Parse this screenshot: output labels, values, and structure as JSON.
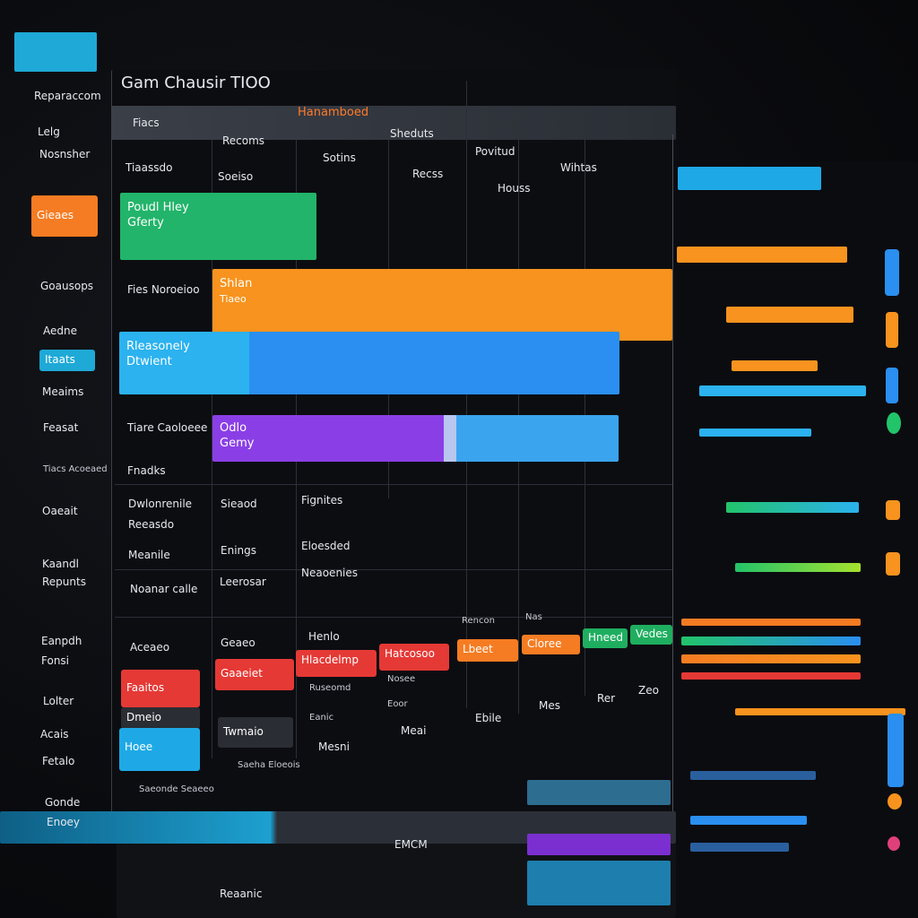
{
  "header": {
    "title": "Gam Chausir TIOO",
    "badge": "Hanamboed"
  },
  "sidebar": {
    "items": [
      "Reparaccom",
      "Lelg",
      "Nosnsher",
      "Gieaes",
      "Goausops",
      "Aedne",
      "Itaats",
      "Meaims",
      "Feasat",
      "Tiacs Acoeaed",
      "Oaeait",
      "Kaandl",
      "Repunts",
      "Eanpdh",
      "Fonsi",
      "Lolter",
      "Acais",
      "Fetalo",
      "Gonde",
      "Enoey"
    ]
  },
  "columns": [
    "Fiacs",
    "Recoms",
    "Sotins",
    "Recss",
    "Houss",
    "Sheduts",
    "Povitud",
    "Wihtas"
  ],
  "tasks": [
    {
      "line1": "Poudl Hley",
      "line2": "Gferty"
    },
    {
      "line1": "Shlan",
      "line2": "Tiaeo"
    },
    {
      "line1": "Rleasonely",
      "line2": "Dtwient"
    },
    {
      "line1": "Odlo",
      "line2": "Gemy"
    }
  ],
  "rows": [
    "Tiaassdo",
    "Soeiso",
    "Fies Noroeioo",
    "Tiare Caoloeee",
    "Fnadks",
    "Dwlonrenile",
    "Reeasdo",
    "Meanile",
    "Sieaod",
    "Enings",
    "Fignites",
    "Eloesded",
    "Neaoenies",
    "Noanar calle",
    "Leerosar",
    "Aceaeo",
    "Geaeo",
    "Henlo",
    "Rencon",
    "Nas",
    "Ruseomd",
    "Eanic",
    "Mesni",
    "Meai",
    "Ebile",
    "Mes",
    "Rer",
    "Zeo",
    "Saeha Eloeois",
    "Saeonde Seaeeo",
    "Nosee",
    "Eoor"
  ],
  "tags": [
    "Faaitos",
    "Dmeio",
    "Hoee",
    "Gaaeiet",
    "Hlacdelmp",
    "Hatcosoo",
    "Lbeet",
    "Cloree",
    "Hneed",
    "Vedes",
    "Twmaio"
  ],
  "footer": {
    "section": "EMCM",
    "label": "Reaanic"
  }
}
